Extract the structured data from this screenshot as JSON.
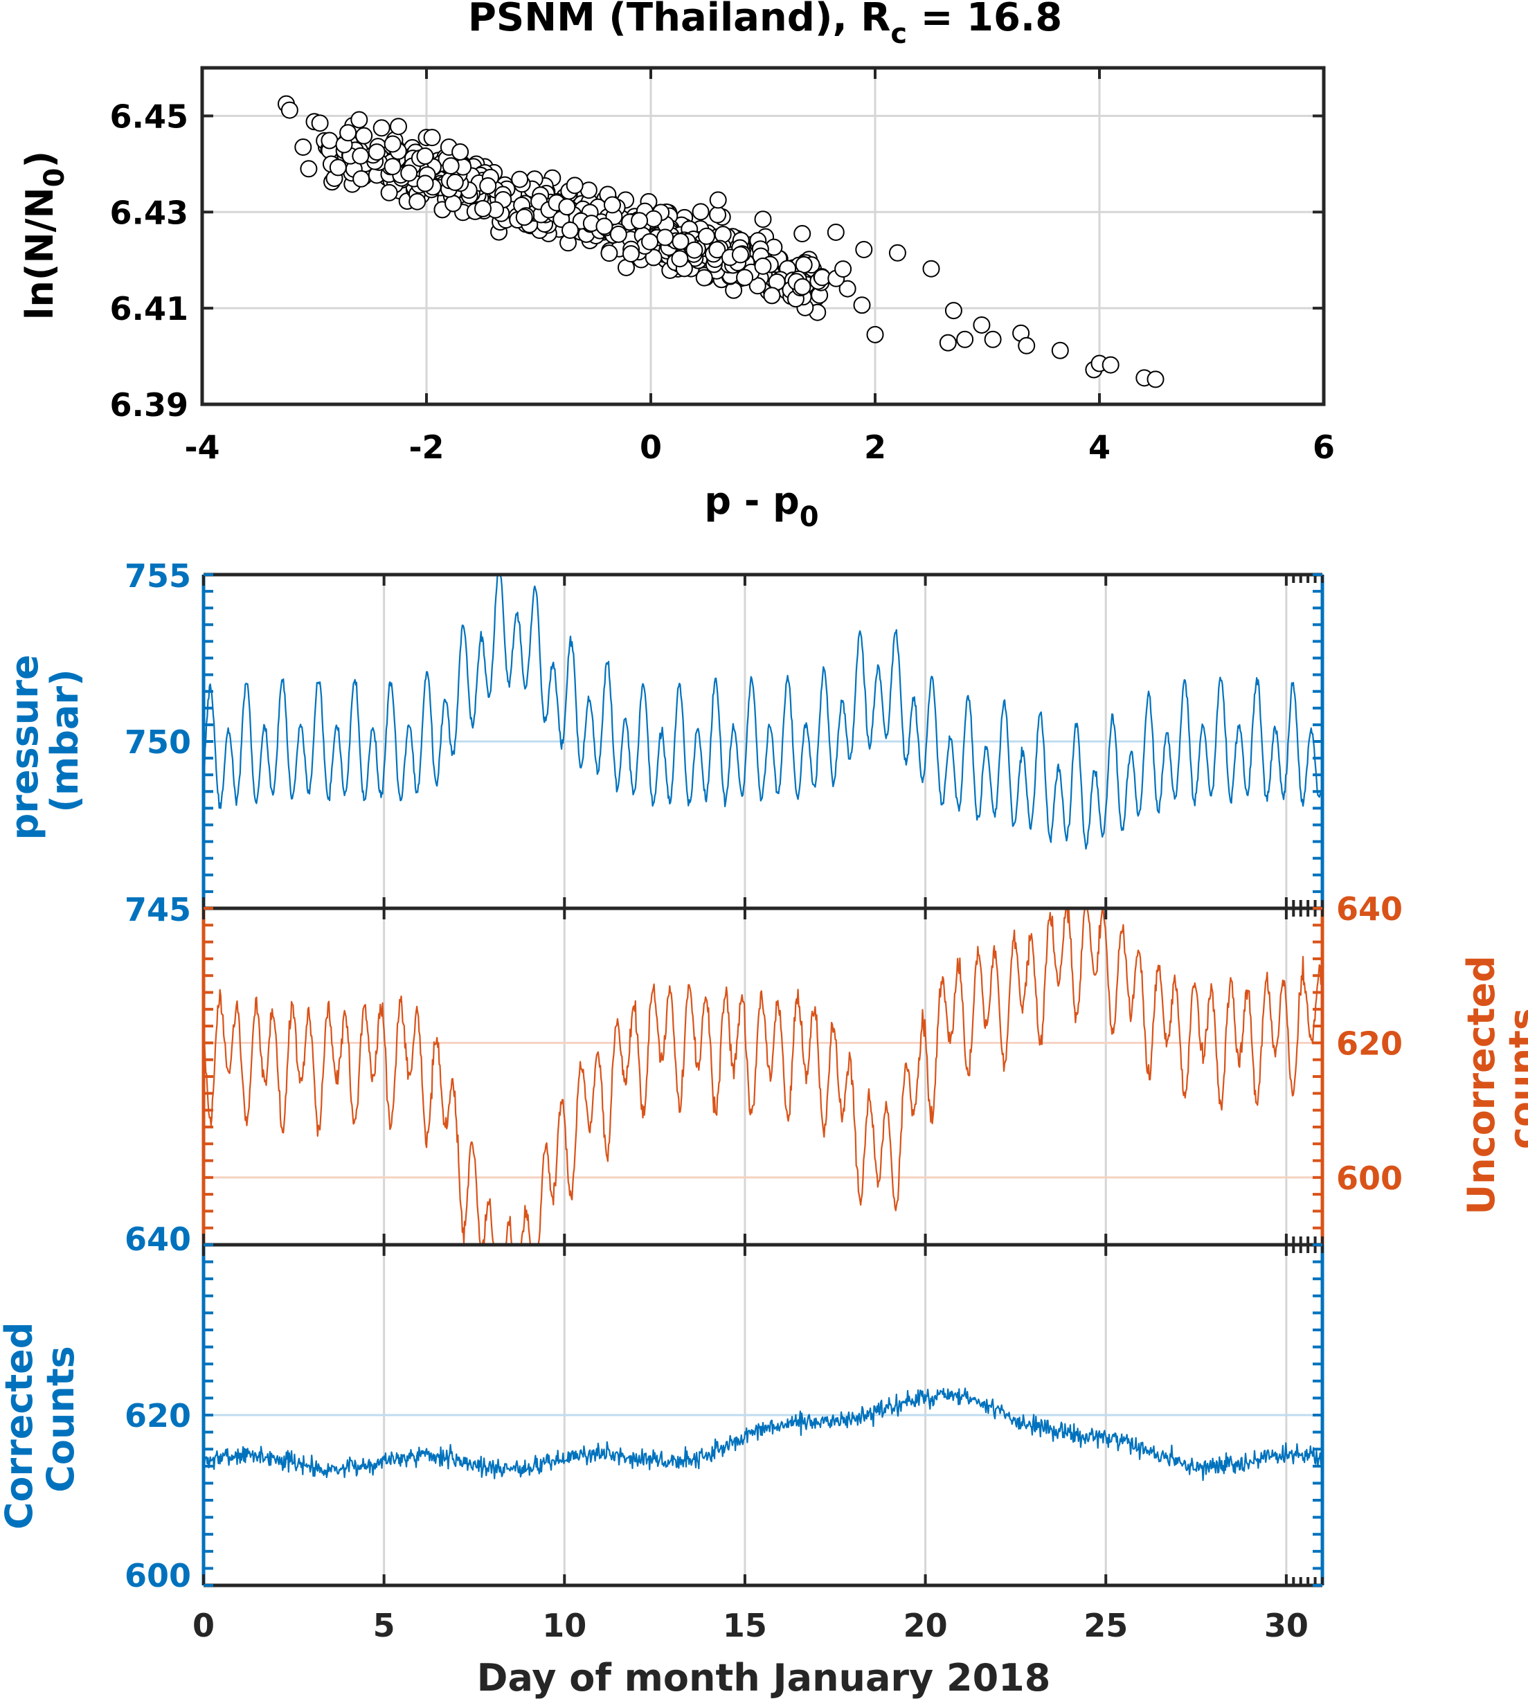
{
  "chart_data": [
    {
      "type": "scatter",
      "title": "PSNM (Thailand), R",
      "title_sub": "c",
      "title_tail": " = 16.8",
      "xlabel": "p - p",
      "xlabel_sub": "0",
      "ylabel": "ln(N/N",
      "ylabel_sub": "0",
      "ylabel_tail": ")",
      "xlim": [
        -4,
        6
      ],
      "ylim": [
        6.39,
        6.46
      ],
      "xticks": [
        -4,
        -2,
        0,
        2,
        4,
        6
      ],
      "xtick_labels": [
        "-4",
        "-2",
        "0",
        "2",
        "4",
        "6"
      ],
      "yticks": [
        6.39,
        6.41,
        6.43,
        6.45
      ],
      "ytick_labels": [
        "6.39",
        "6.41",
        "6.43",
        "6.45"
      ],
      "grid": true,
      "trend": {
        "slope": -0.0062,
        "intercept": 6.4248,
        "spread": 0.0055
      },
      "n_points": 720,
      "points": [
        [
          -3.25,
          6.4525
        ],
        [
          -3.22,
          6.4512
        ],
        [
          -3.0,
          6.4488
        ],
        [
          -2.95,
          6.4485
        ],
        [
          -3.1,
          6.4435
        ],
        [
          -3.05,
          6.439
        ],
        [
          -2.7,
          6.4465
        ],
        [
          -2.6,
          6.4492
        ],
        [
          -2.4,
          6.4475
        ],
        [
          -2.25,
          6.4478
        ],
        [
          -2.0,
          6.4455
        ],
        [
          -1.95,
          6.4455
        ],
        [
          -1.8,
          6.4435
        ],
        [
          -1.7,
          6.4425
        ],
        [
          1.35,
          6.4255
        ],
        [
          1.65,
          6.4258
        ],
        [
          1.9,
          6.4222
        ],
        [
          2.2,
          6.4215
        ],
        [
          2.5,
          6.4182
        ],
        [
          2.7,
          6.4095
        ],
        [
          2.95,
          6.4065
        ],
        [
          3.3,
          6.4048
        ],
        [
          3.35,
          6.4022
        ],
        [
          3.65,
          6.4012
        ],
        [
          3.95,
          6.3972
        ],
        [
          4.0,
          6.3985
        ],
        [
          4.1,
          6.3982
        ],
        [
          4.4,
          6.3955
        ],
        [
          4.5,
          6.3952
        ],
        [
          2.8,
          6.4035
        ],
        [
          3.05,
          6.4035
        ],
        [
          2.0,
          6.4045
        ],
        [
          2.65,
          6.4028
        ],
        [
          1.0,
          6.4285
        ],
        [
          0.6,
          6.4325
        ]
      ]
    },
    {
      "type": "line",
      "series": [
        {
          "name": "pressure (mbar)",
          "axis": "left",
          "color": "#0072BD",
          "ylim": [
            745,
            755
          ],
          "yticks": [
            745,
            750,
            755
          ],
          "ytick_labels": [
            "745",
            "750",
            "755"
          ],
          "ylabel": [
            "pressure",
            "(mbar)"
          ],
          "mean": 750.0
        },
        {
          "name": "Uncorrected counts",
          "axis": "right",
          "color": "#D95319",
          "ylim": [
            590,
            640
          ],
          "yticks": [
            600,
            620,
            640
          ],
          "ytick_labels": [
            "600",
            "620",
            "640"
          ],
          "ylabel": [
            "Uncorrected",
            "counts"
          ],
          "mean": 618.5
        }
      ],
      "xlim": [
        0,
        31
      ],
      "xticks": [
        0,
        5,
        10,
        15,
        20,
        25,
        30
      ],
      "left_axis": {
        "ylim": [
          640,
          745
        ],
        "bottom_label": "640"
      },
      "grid": true
    },
    {
      "type": "line",
      "series": [
        {
          "name": "Corrected Counts",
          "axis": "left",
          "color": "#0072BD",
          "ylim": [
            600,
            640
          ],
          "yticks": [
            600,
            620,
            640
          ],
          "ytick_labels": [
            "600",
            "620",
            "640"
          ],
          "ylabel": [
            "Corrected",
            "Counts"
          ],
          "mean": 616.5
        }
      ],
      "xlim": [
        0,
        31
      ],
      "xticks": [
        0,
        5,
        10,
        15,
        20,
        25,
        30
      ],
      "xtick_labels": [
        "0",
        "5",
        "10",
        "15",
        "20",
        "25",
        "30"
      ],
      "xlabel": "Day of month January 2018",
      "grid": true
    }
  ],
  "colors": {
    "blue": "#0072BD",
    "orange": "#D95319",
    "axis": "#262626",
    "grid": "#D6D6D6",
    "blue_ref": "#BFDCEF",
    "orange_ref": "#F6D2C2"
  }
}
